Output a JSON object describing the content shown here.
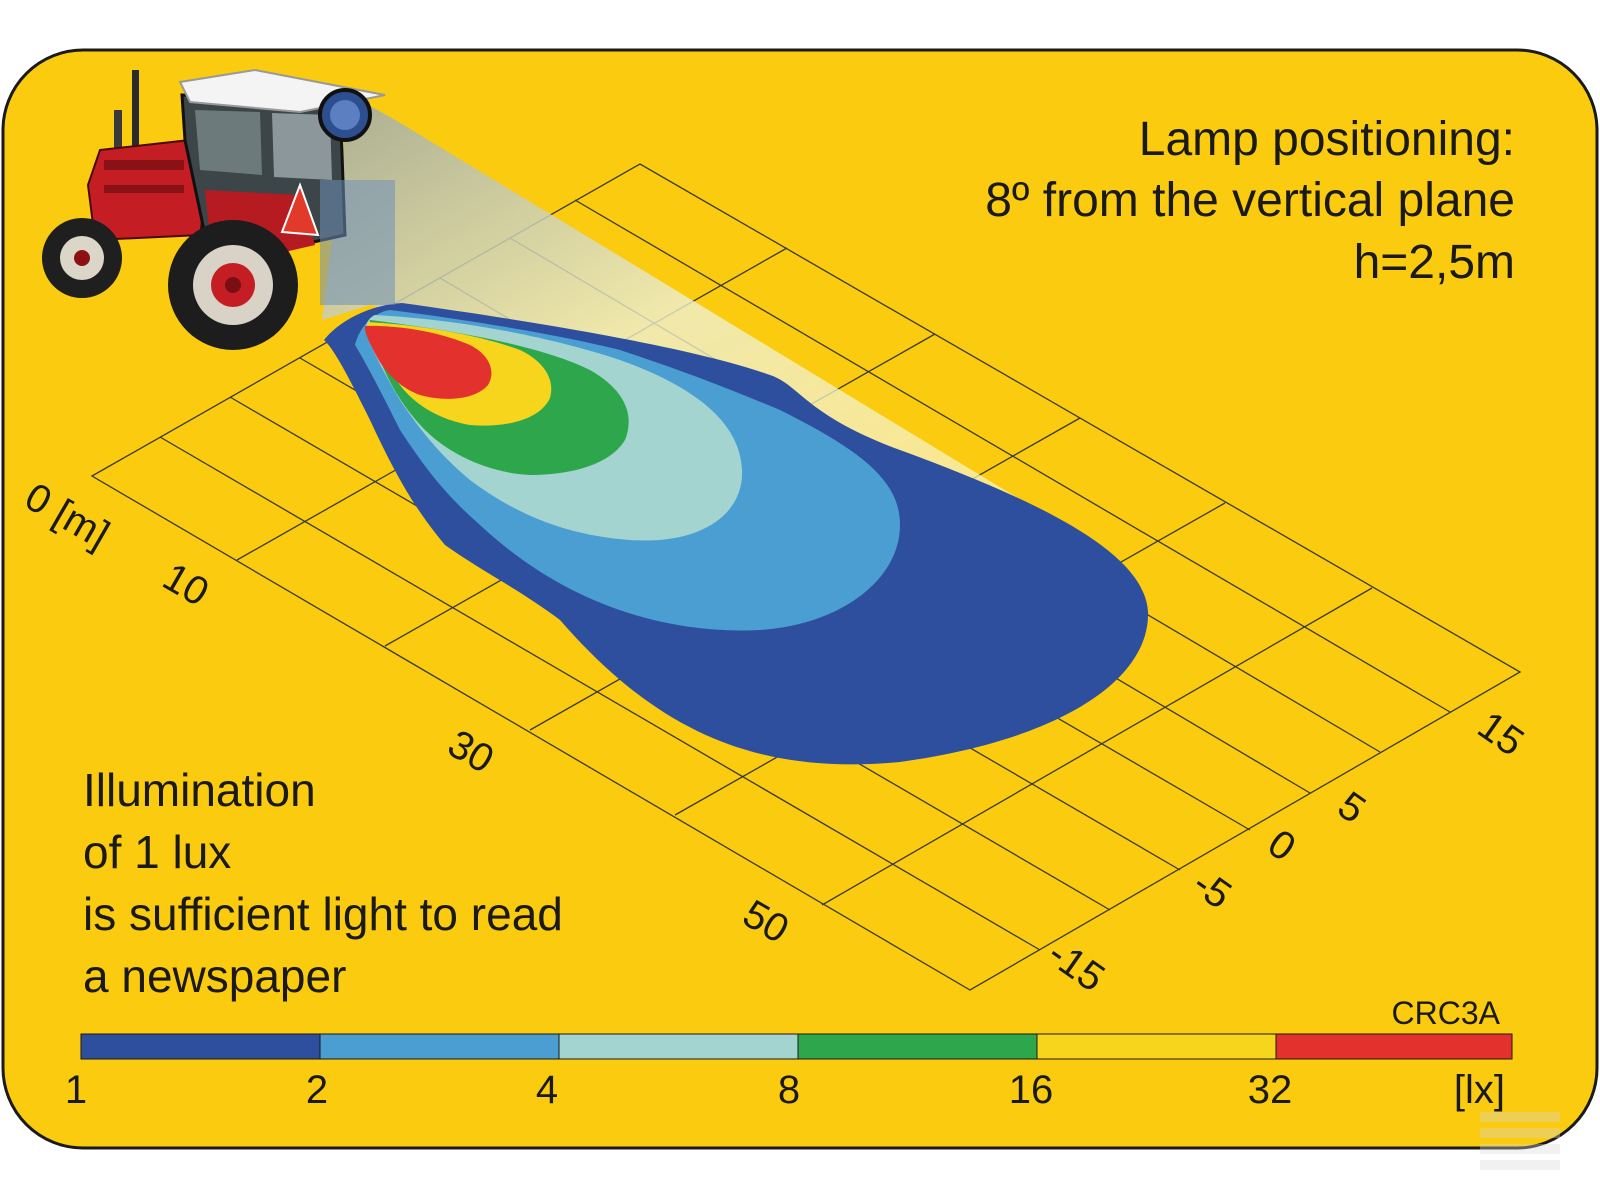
{
  "colors": {
    "background": "#FACB0F",
    "border": "#1a1a1a",
    "band_1": "#2E4F9E",
    "band_2": "#4B9ED2",
    "band_4": "#A3D4D0",
    "band_8": "#2EA74C",
    "band_16": "#F7D51C",
    "band_32": "#E3312E",
    "beam": "#FFFFFF"
  },
  "header": {
    "line1": "Lamp positioning:",
    "line2": "8º from the vertical plane",
    "line3": "h=2,5m"
  },
  "note": {
    "line1": "Illumination",
    "line2": "of 1 lux",
    "line3": "is sufficient light to read",
    "line4": "a newspaper"
  },
  "model_code": "CRC3A",
  "distance_axis": {
    "labels": [
      "0 [m]",
      "10",
      "30",
      "50"
    ]
  },
  "lateral_axis": {
    "labels": [
      "15",
      "5",
      "0",
      "-5",
      "-15"
    ]
  },
  "legend": {
    "ticks": [
      "1",
      "2",
      "4",
      "8",
      "16",
      "32"
    ],
    "unit": "[lx]"
  },
  "icons": {
    "vehicle": "tractor-with-work-lamp-icon",
    "watermark": "k-logo-watermark-icon"
  }
}
